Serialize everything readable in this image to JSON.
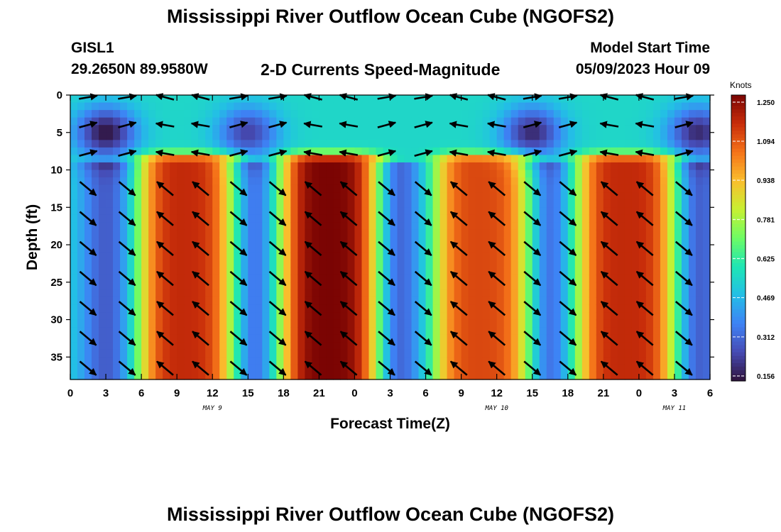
{
  "page": {
    "title": "Mississippi River Outflow Ocean Cube (NGOFS2)",
    "title_repeat": "Mississippi River Outflow Ocean Cube (NGOFS2)",
    "station": "GISL1",
    "coords": "29.2650N  89.9580W",
    "subtitle": "2-D Currents Speed-Magnitude",
    "model_start_label": "Model Start Time",
    "model_start_value": "05/09/2023 Hour 09"
  },
  "chart_data": {
    "type": "heatmap",
    "xlabel": "Forecast Time(Z)",
    "ylabel": "Depth (ft)",
    "x_ticks": [
      "0",
      "3",
      "6",
      "9",
      "12",
      "15",
      "18",
      "21",
      "0",
      "3",
      "6",
      "9",
      "12",
      "15",
      "18",
      "21",
      "0",
      "3",
      "6"
    ],
    "date_labels": [
      {
        "text": "MAY 9",
        "at_hour": 12
      },
      {
        "text": "MAY 10",
        "at_hour": 36
      },
      {
        "text": "MAY 11",
        "at_hour": 51
      }
    ],
    "x_range_hours": [
      0,
      54
    ],
    "y_ticks": [
      0,
      5,
      10,
      15,
      20,
      25,
      30,
      35
    ],
    "ylim": [
      0,
      38
    ],
    "y_inverted": true,
    "colorbar": {
      "unit": "Knots",
      "min": 0.156,
      "max": 1.25,
      "ticks": [
        "1.250",
        "1.094",
        "0.938",
        "0.781",
        "0.625",
        "0.469",
        "0.312",
        "0.156"
      ]
    },
    "speed_maxima_knots": [
      {
        "hour": 10,
        "depth_ft": 14,
        "speed": 1.15
      },
      {
        "hour": 22,
        "depth_ft": 13,
        "speed": 1.25
      },
      {
        "hour": 35,
        "depth_ft": 14,
        "speed": 1.1
      },
      {
        "hour": 47,
        "depth_ft": 15,
        "speed": 1.15
      }
    ],
    "speed_minima_knots": [
      {
        "hour": 3,
        "depth_ft": 5,
        "speed": 0.16
      },
      {
        "hour": 15,
        "depth_ft": 5,
        "speed": 0.25
      },
      {
        "hour": 39,
        "depth_ft": 5,
        "speed": 0.2
      },
      {
        "hour": 53,
        "depth_ft": 5,
        "speed": 0.2
      }
    ],
    "grid": false,
    "vectors": true
  }
}
